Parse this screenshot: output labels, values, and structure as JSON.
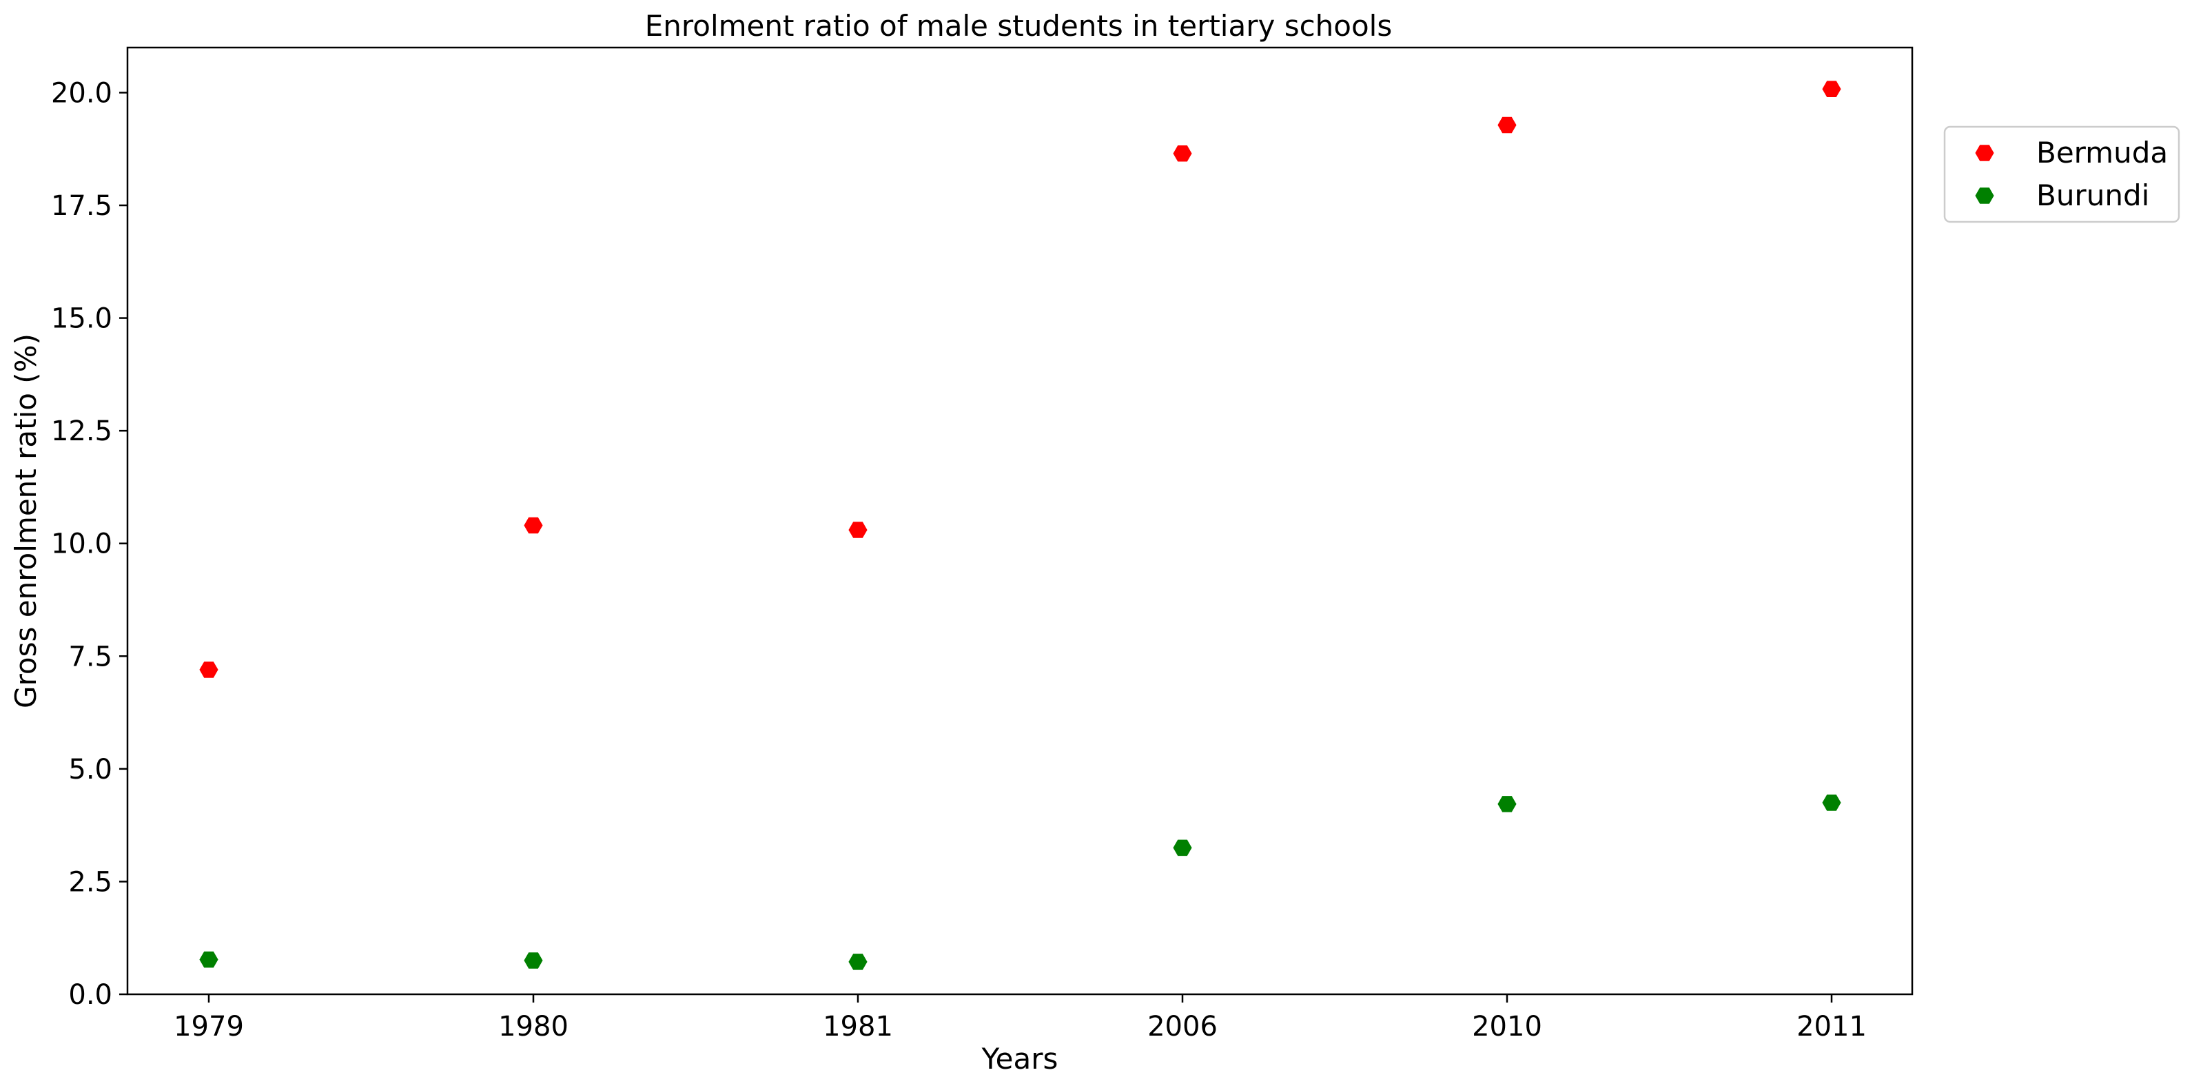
{
  "chart_data": {
    "type": "scatter",
    "title": "Enrolment ratio of male students in tertiary schools",
    "xlabel": "Years",
    "ylabel": "Gross enrolment ratio (%)",
    "categories": [
      "1979",
      "1980",
      "1981",
      "2006",
      "2010",
      "2011"
    ],
    "ylim": [
      0,
      21
    ],
    "yticks": [
      "0.0",
      "2.5",
      "5.0",
      "7.5",
      "10.0",
      "12.5",
      "15.0",
      "17.5",
      "20.0"
    ],
    "grid": false,
    "legend_position": "outside-top-right",
    "marker": "hexagon",
    "series": [
      {
        "name": "Bermuda",
        "color": "#ff0000",
        "values": [
          7.2,
          10.4,
          10.3,
          18.65,
          19.28,
          20.08
        ]
      },
      {
        "name": "Burundi",
        "color": "#008000",
        "values": [
          0.77,
          0.75,
          0.72,
          3.25,
          4.22,
          4.25
        ]
      }
    ]
  }
}
